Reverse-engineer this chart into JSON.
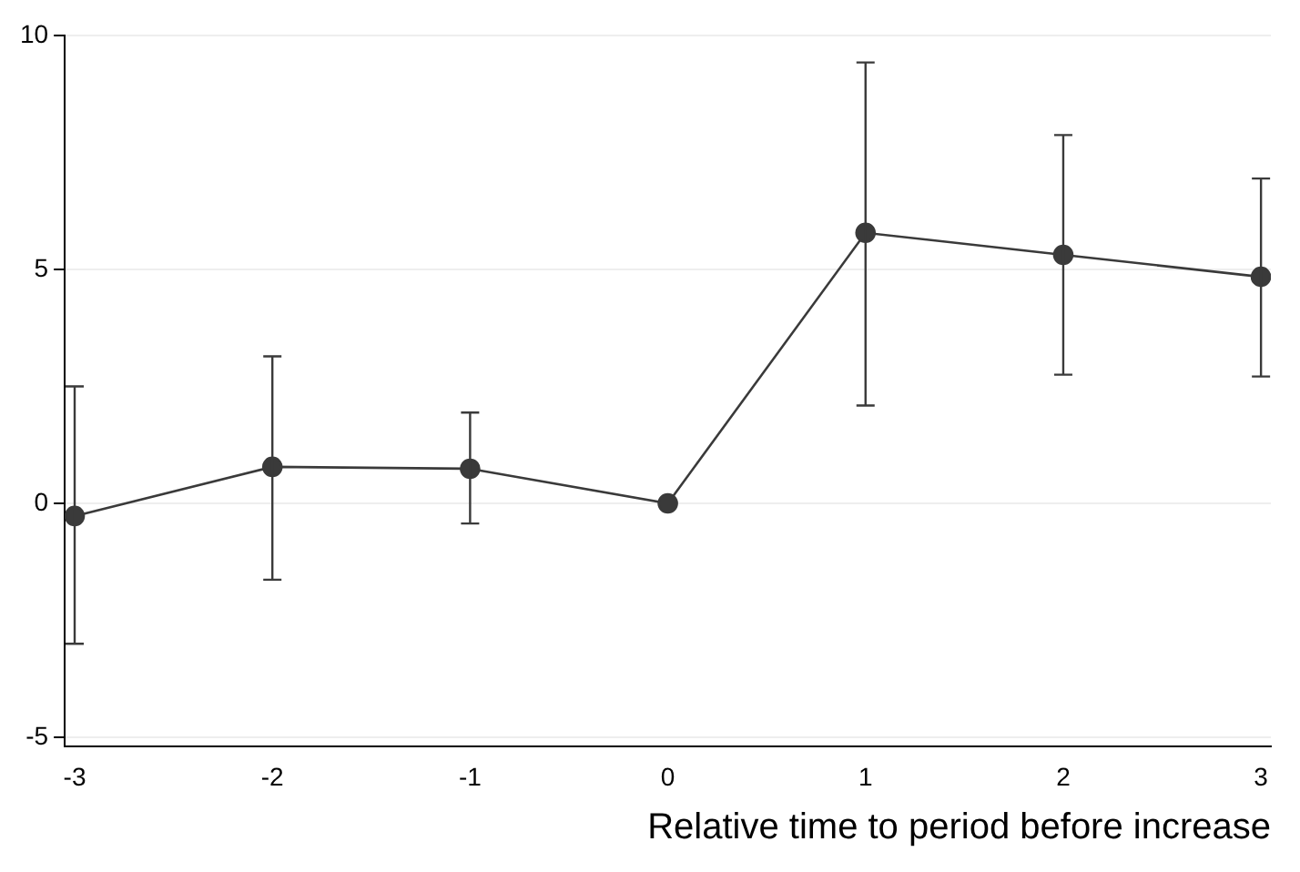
{
  "chart_data": {
    "type": "line",
    "xlabel": "Relative time to period before increase",
    "x": [
      -3,
      -2,
      -1,
      0,
      1,
      2,
      3
    ],
    "series": [
      {
        "color": "#3a3a3a",
        "values": [
          -0.27,
          0.78,
          0.74,
          0,
          5.78,
          5.31,
          4.84
        ],
        "errors": [
          [
            -3.0,
            2.5
          ],
          [
            -1.63,
            3.14
          ],
          [
            -0.43,
            1.94
          ],
          null,
          [
            2.09,
            9.42
          ],
          [
            2.75,
            7.87
          ],
          [
            2.71,
            6.94
          ]
        ]
      }
    ],
    "xlim": [
      -3.05,
      3.05
    ],
    "xticks": [
      -3,
      -2,
      -1,
      0,
      1,
      2,
      3
    ],
    "ylim": [
      -5.2,
      10
    ],
    "yticks": [
      -5,
      0,
      5,
      10
    ],
    "grid": "y",
    "marker": "circle",
    "line_style": "solid",
    "legend": false
  }
}
